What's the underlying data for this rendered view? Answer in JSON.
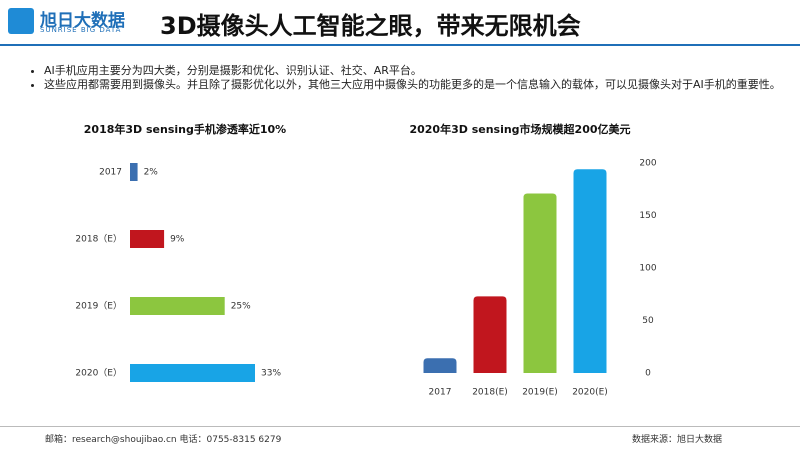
{
  "header": {
    "logo_cn": "旭日大数据",
    "logo_en": "SUNRISE BIG DATA",
    "title": "3D摄像头人工智能之眼，带来无限机会"
  },
  "bullets": [
    "AI手机应用主要分为四大类，分别是摄影和优化、识别认证、社交、AR平台。",
    "这些应用都需要用到摄像头。并且除了摄影优化以外，其他三大应用中摄像头的功能更多的是一个信息输入的载体，可以见摄像头对于AI手机的重要性。"
  ],
  "chart_data": [
    {
      "type": "bar",
      "orientation": "horizontal",
      "title": "2018年3D sensing手机渗透率近10%",
      "categories": [
        "2017",
        "2018（E）",
        "2019（E）",
        "2020（E）"
      ],
      "values": [
        2,
        9,
        25,
        33
      ],
      "value_labels": [
        "2%",
        "9%",
        "25%",
        "33%"
      ],
      "colors": [
        "#3b6fb0",
        "#c1161e",
        "#8cc63f",
        "#18a4e6"
      ]
    },
    {
      "type": "bar",
      "orientation": "vertical",
      "title": "2020年3D sensing市场规模超200亿美元",
      "categories": [
        "2017",
        "2018(E)",
        "2019(E)",
        "2020(E)"
      ],
      "values": [
        14,
        73,
        171,
        194
      ],
      "colors": [
        "#3b6fb0",
        "#c1161e",
        "#8cc63f",
        "#18a4e6"
      ],
      "ylim": [
        0,
        200
      ],
      "yticks": [
        0,
        50,
        100,
        150,
        200
      ],
      "axis_side": "right"
    }
  ],
  "footer": {
    "contact": "邮箱：research@shoujibao.cn 电话：0755-8315 6279",
    "source": "数据来源：旭日大数据"
  }
}
